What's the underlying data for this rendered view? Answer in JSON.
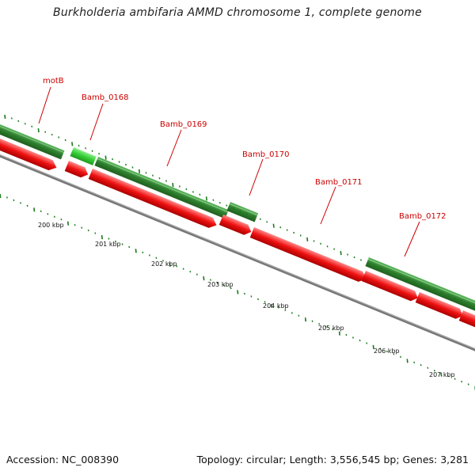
{
  "title": "Burkholderia ambifaria AMMD chromosome 1, complete genome",
  "footer": {
    "accession": "Accession: NC_008390",
    "summary": "Topology: circular; Length: 3,556,545 bp; Genes: 3,281"
  },
  "colors": {
    "forward_dark": "#2d7d2d",
    "forward_light": "#33cc33",
    "reverse": "#ee1111",
    "backbone": "#777777",
    "label": "#cc0000",
    "tick": "#1a7a1a"
  },
  "gene_labels": [
    "motB",
    "Bamb_0168",
    "Bamb_0169",
    "Bamb_0170",
    "Bamb_0171",
    "Bamb_0172"
  ],
  "kbp_labels": [
    "200 kbp",
    "201 kbp",
    "202 kbp",
    "203 kbp",
    "204 kbp",
    "205 kbp",
    "206 kbp",
    "207 kbp"
  ]
}
